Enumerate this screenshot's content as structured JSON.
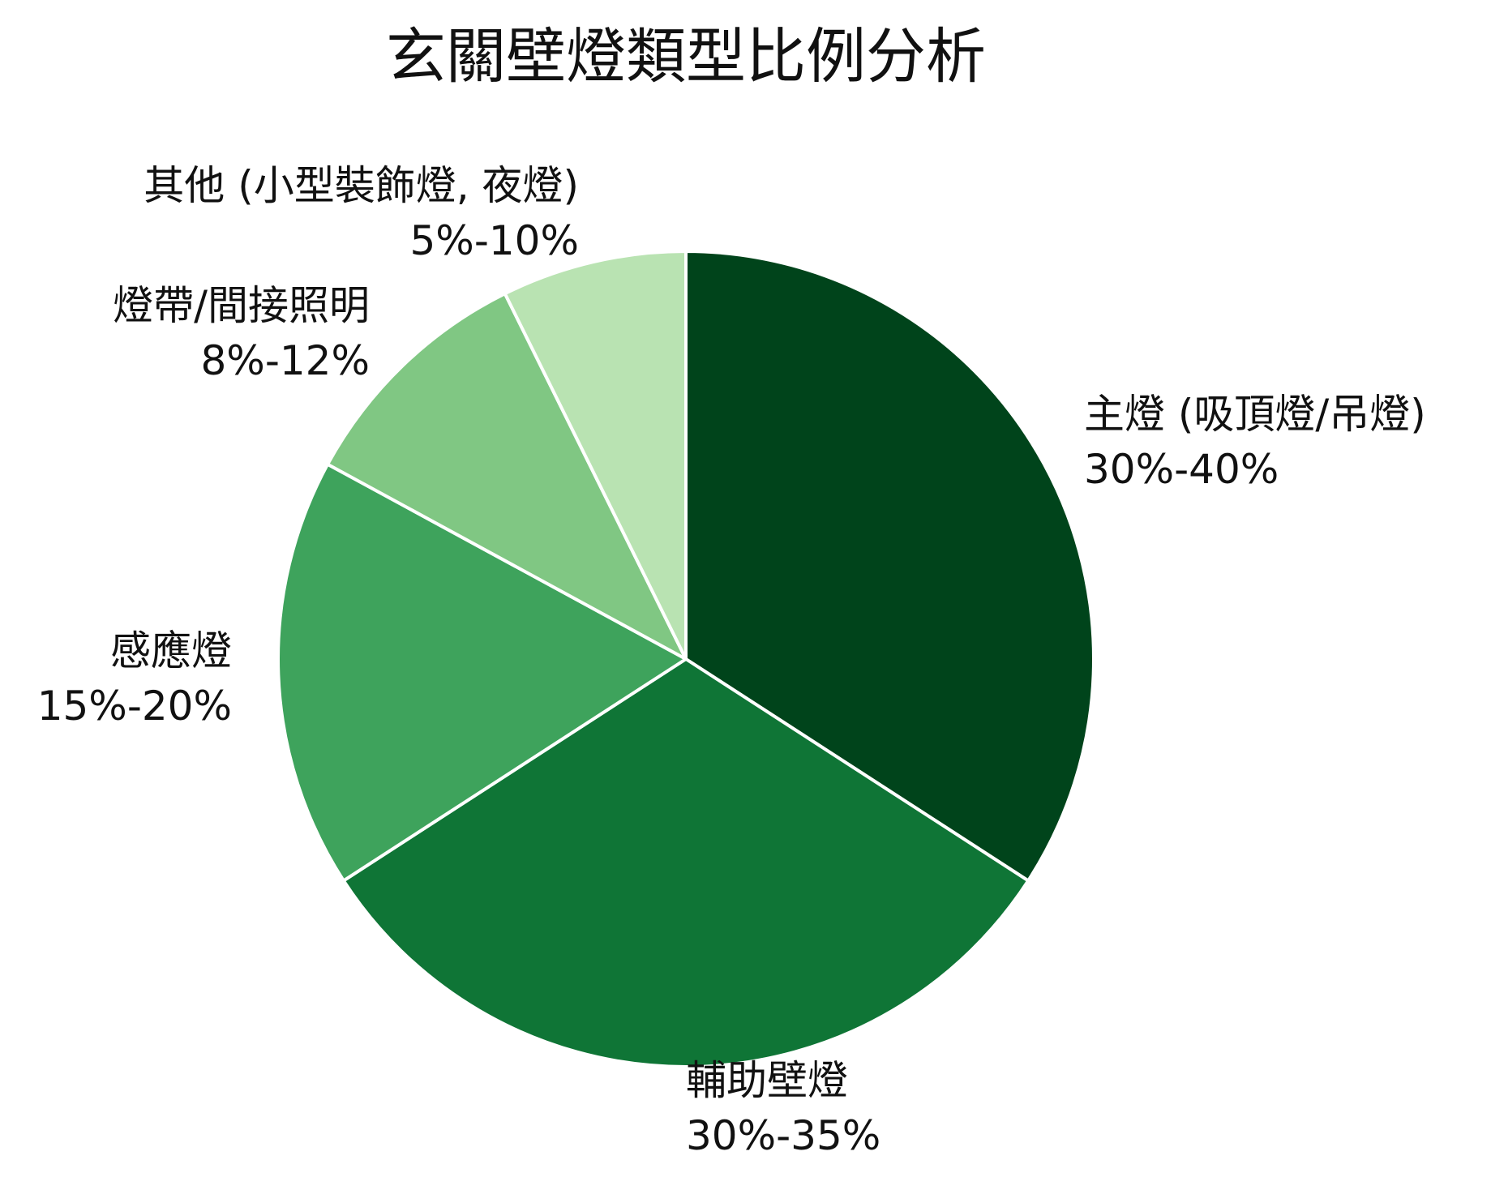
{
  "chart_data": {
    "type": "pie",
    "title": "玄關壁燈類型比例分析",
    "slices": [
      {
        "label": "主燈 (吸頂燈/吊燈)",
        "range_text": "30%-40%",
        "value": 35,
        "color": "#00441b"
      },
      {
        "label": "輔助壁燈",
        "range_text": "30%-35%",
        "value": 32.5,
        "color": "#0f7536"
      },
      {
        "label": "感應燈",
        "range_text": "15%-20%",
        "value": 17.5,
        "color": "#3ea35c"
      },
      {
        "label": "燈帶/間接照明",
        "range_text": "8%-12%",
        "value": 10,
        "color": "#80c783"
      },
      {
        "label": "其他 (小型裝飾燈, 夜燈)",
        "range_text": "5%-10%",
        "value": 7.5,
        "color": "#b9e3b2"
      }
    ],
    "start_angle": "12 o'clock",
    "direction": "clockwise",
    "legend": "none",
    "slice_border_color": "#ffffff"
  }
}
